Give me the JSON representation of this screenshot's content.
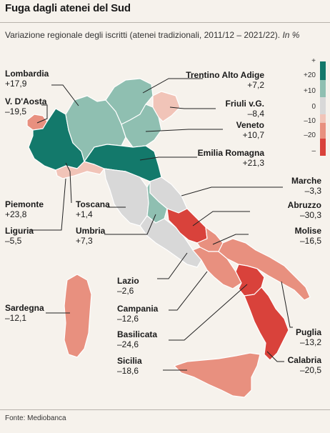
{
  "title": "Fuga dagli atenei del Sud",
  "subtitle": "Variazione regionale degli iscritti (atenei tradizionali, 2011/12 – 2021/22).",
  "subtitle_unit": "In %",
  "source": "Fonte: Mediobanca",
  "colors": {
    "pos_strong": "#13796b",
    "pos_mid": "#8fbfb1",
    "neutral": "#d8d8d8",
    "neg_light": "#f1c4b8",
    "neg_mid": "#e8907f",
    "neg_strong": "#d9423b"
  },
  "legend": {
    "ticks": [
      "+",
      "+20",
      "+10",
      "0",
      "–10",
      "–20",
      "–"
    ]
  },
  "regions": [
    {
      "name": "Lombardia",
      "value": "+17,9"
    },
    {
      "name": "V. D'Aosta",
      "value": "–19,5"
    },
    {
      "name": "Trentino Alto Adige",
      "value": "+7,2"
    },
    {
      "name": "Friuli v.G.",
      "value": "–8,4"
    },
    {
      "name": "Veneto",
      "value": "+10,7"
    },
    {
      "name": "Emilia Romagna",
      "value": "+21,3"
    },
    {
      "name": "Marche",
      "value": "–3,3"
    },
    {
      "name": "Abruzzo",
      "value": "–30,3"
    },
    {
      "name": "Piemonte",
      "value": "+23,8"
    },
    {
      "name": "Toscana",
      "value": "+1,4"
    },
    {
      "name": "Liguria",
      "value": "–5,5"
    },
    {
      "name": "Umbria",
      "value": "+7,3"
    },
    {
      "name": "Molise",
      "value": "–16,5"
    },
    {
      "name": "Lazio",
      "value": "–2,6"
    },
    {
      "name": "Campania",
      "value": "–12,6"
    },
    {
      "name": "Basilicata",
      "value": "–24,6"
    },
    {
      "name": "Sardegna",
      "value": "–12,1"
    },
    {
      "name": "Sicilia",
      "value": "–18,6"
    },
    {
      "name": "Puglia",
      "value": "–13,2"
    },
    {
      "name": "Calabria",
      "value": "–20,5"
    }
  ]
}
